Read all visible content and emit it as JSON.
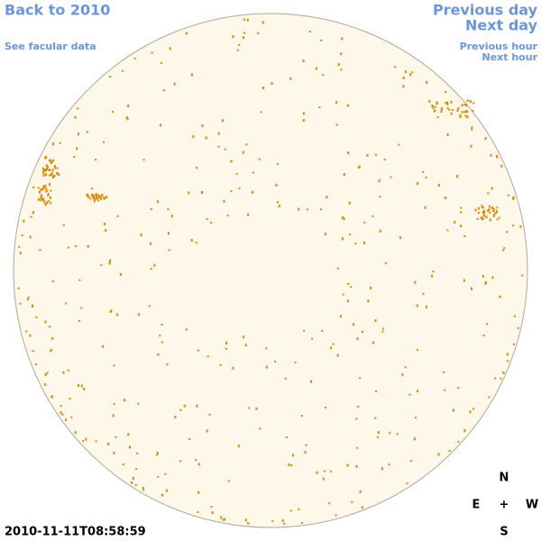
{
  "navigation": {
    "back": "Back to 2010",
    "facular": "See facular data",
    "previous_day": "Previous day",
    "next_day": "Next day",
    "previous_hour": "Previous hour",
    "next_hour": "Next hour"
  },
  "timestamp": "2010-11-11T08:58:59",
  "compass": {
    "north": "N",
    "east": "E",
    "center": "+",
    "west": "W",
    "south": "S"
  }
}
